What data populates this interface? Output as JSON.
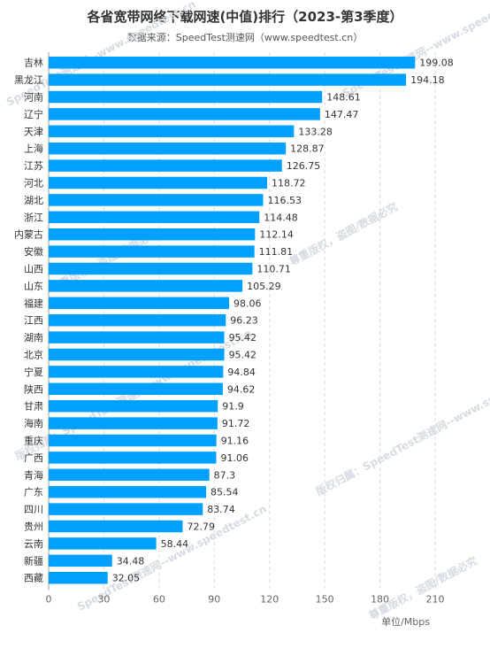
{
  "chart_data": {
    "type": "bar",
    "orientation": "horizontal",
    "title": "各省宽带网络下载网速(中值)排行（2023-第3季度）",
    "subtitle": "数据来源：SpeedTest测速网（www.speedtest.cn）",
    "xlabel": "单位/Mbps",
    "xlim": [
      0,
      210
    ],
    "xticks": [
      "0",
      "30",
      "60",
      "90",
      "120",
      "150",
      "180",
      "210"
    ],
    "grid": true,
    "bar_color": "#00a0ff",
    "categories": [
      "吉林",
      "黑龙江",
      "河南",
      "辽宁",
      "天津",
      "上海",
      "江苏",
      "河北",
      "湖北",
      "浙江",
      "内蒙古",
      "安徽",
      "山西",
      "山东",
      "福建",
      "江西",
      "湖南",
      "北京",
      "宁夏",
      "陕西",
      "甘肃",
      "海南",
      "重庆",
      "广西",
      "青海",
      "广东",
      "四川",
      "贵州",
      "云南",
      "新疆",
      "西藏"
    ],
    "values": [
      199.08,
      194.18,
      148.61,
      147.47,
      133.28,
      128.87,
      126.75,
      118.72,
      116.53,
      114.48,
      112.14,
      111.81,
      110.71,
      105.29,
      98.06,
      96.23,
      95.42,
      95.42,
      94.84,
      94.62,
      91.9,
      91.72,
      91.16,
      91.06,
      87.3,
      85.54,
      83.74,
      72.79,
      58.44,
      34.48,
      32.05
    ],
    "value_labels": [
      "199.08",
      "194.18",
      "148.61",
      "147.47",
      "133.28",
      "128.87",
      "126.75",
      "118.72",
      "116.53",
      "114.48",
      "112.14",
      "111.81",
      "110.71",
      "105.29",
      "98.06",
      "96.23",
      "95.42",
      "95.42",
      "94.84",
      "94.62",
      "91.9",
      "91.72",
      "91.16",
      "91.06",
      "87.3",
      "85.54",
      "83.74",
      "72.79",
      "58.44",
      "34.48",
      "32.05"
    ]
  },
  "watermark": {
    "line1": "SpeedTest测速网--www.speedtest.cn",
    "line2": "版权归属：SpeedTest测速网--www.speedtest.cn",
    "line3": "尊重版权，盗图/数据必究"
  }
}
